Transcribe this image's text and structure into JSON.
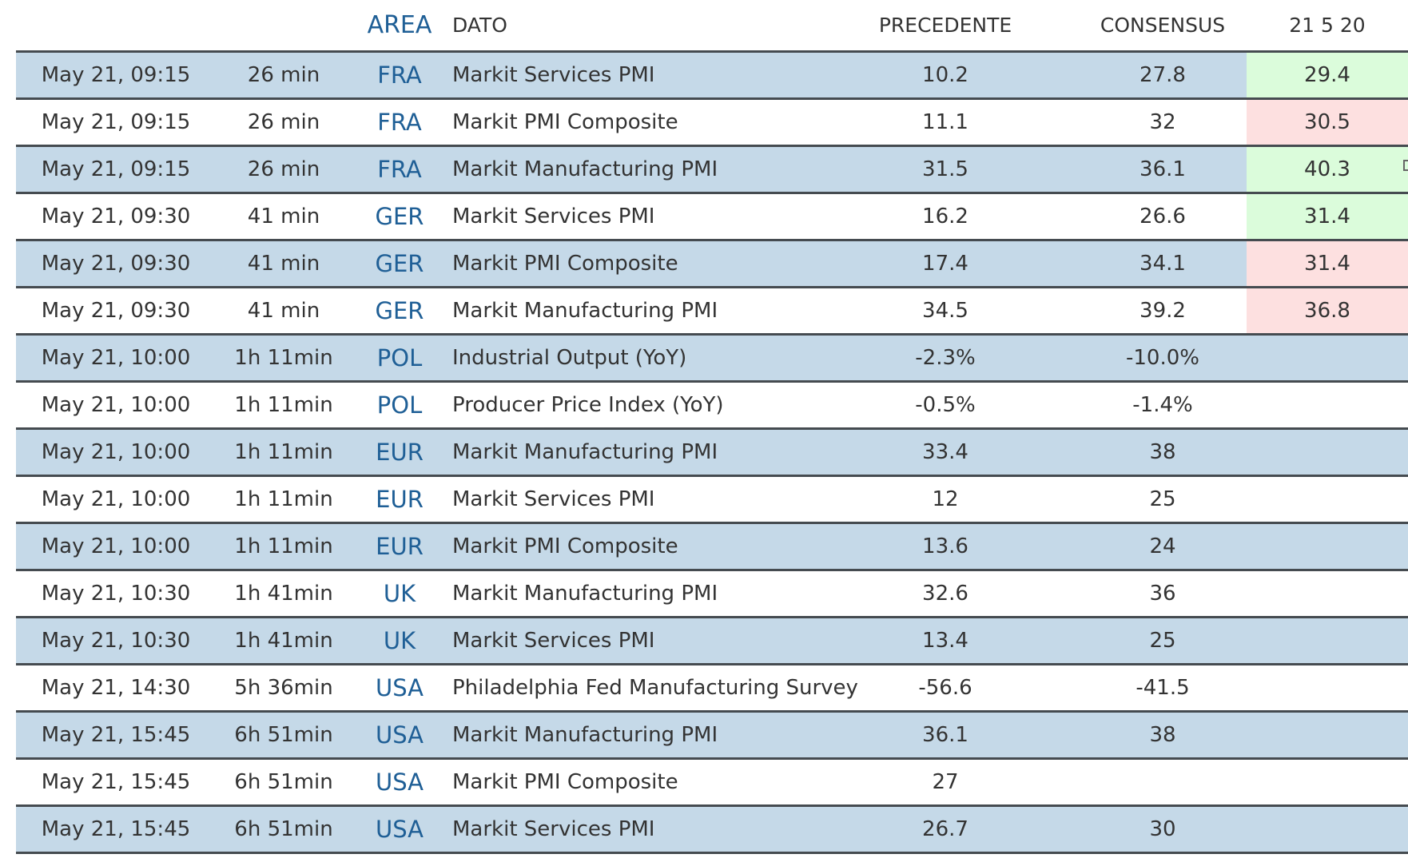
{
  "header": {
    "area": "AREA",
    "dato": "DATO",
    "precedente": "PRECEDENTE",
    "consensus": "CONSENSUS",
    "actual_date": "21 5 20"
  },
  "colors": {
    "row_alt": "#c5d9e8",
    "area_text": "#1f5f96",
    "actual_up": "#dbfcdb",
    "actual_down": "#fde0e0",
    "row_divider": "#454b50"
  },
  "rows": [
    {
      "time": "May 21, 09:15",
      "eta": "26 min",
      "area": "FRA",
      "dato": "Markit Services PMI",
      "precedente": "10.2",
      "consensus": "27.8",
      "actual": "29.4",
      "trend": "up"
    },
    {
      "time": "May 21, 09:15",
      "eta": "26 min",
      "area": "FRA",
      "dato": "Markit PMI Composite",
      "precedente": "11.1",
      "consensus": "32",
      "actual": "30.5",
      "trend": "down"
    },
    {
      "time": "May 21, 09:15",
      "eta": "26 min",
      "area": "FRA",
      "dato": "Markit Manufacturing PMI",
      "precedente": "31.5",
      "consensus": "36.1",
      "actual": "40.3",
      "trend": "up"
    },
    {
      "time": "May 21, 09:30",
      "eta": "41 min",
      "area": "GER",
      "dato": "Markit Services PMI",
      "precedente": "16.2",
      "consensus": "26.6",
      "actual": "31.4",
      "trend": "up"
    },
    {
      "time": "May 21, 09:30",
      "eta": "41 min",
      "area": "GER",
      "dato": "Markit PMI Composite",
      "precedente": "17.4",
      "consensus": "34.1",
      "actual": "31.4",
      "trend": "down"
    },
    {
      "time": "May 21, 09:30",
      "eta": "41 min",
      "area": "GER",
      "dato": "Markit Manufacturing PMI",
      "precedente": "34.5",
      "consensus": "39.2",
      "actual": "36.8",
      "trend": "down"
    },
    {
      "time": "May 21, 10:00",
      "eta": "1h 11min",
      "area": "POL",
      "dato": "Industrial Output (YoY)",
      "precedente": "-2.3%",
      "consensus": "-10.0%",
      "actual": "",
      "trend": ""
    },
    {
      "time": "May 21, 10:00",
      "eta": "1h 11min",
      "area": "POL",
      "dato": "Producer Price Index (YoY)",
      "precedente": "-0.5%",
      "consensus": "-1.4%",
      "actual": "",
      "trend": ""
    },
    {
      "time": "May 21, 10:00",
      "eta": "1h 11min",
      "area": "EUR",
      "dato": "Markit Manufacturing PMI",
      "precedente": "33.4",
      "consensus": "38",
      "actual": "",
      "trend": ""
    },
    {
      "time": "May 21, 10:00",
      "eta": "1h 11min",
      "area": "EUR",
      "dato": "Markit Services PMI",
      "precedente": "12",
      "consensus": "25",
      "actual": "",
      "trend": ""
    },
    {
      "time": "May 21, 10:00",
      "eta": "1h 11min",
      "area": "EUR",
      "dato": "Markit PMI Composite",
      "precedente": "13.6",
      "consensus": "24",
      "actual": "",
      "trend": ""
    },
    {
      "time": "May 21, 10:30",
      "eta": "1h 41min",
      "area": "UK",
      "dato": "Markit Manufacturing PMI",
      "precedente": "32.6",
      "consensus": "36",
      "actual": "",
      "trend": ""
    },
    {
      "time": "May 21, 10:30",
      "eta": "1h 41min",
      "area": "UK",
      "dato": "Markit Services PMI",
      "precedente": "13.4",
      "consensus": "25",
      "actual": "",
      "trend": ""
    },
    {
      "time": "May 21, 14:30",
      "eta": "5h 36min",
      "area": "USA",
      "dato": "Philadelphia Fed Manufacturing Survey",
      "precedente": "-56.6",
      "consensus": "-41.5",
      "actual": "",
      "trend": ""
    },
    {
      "time": "May 21, 15:45",
      "eta": "6h 51min",
      "area": "USA",
      "dato": "Markit Manufacturing PMI",
      "precedente": "36.1",
      "consensus": "38",
      "actual": "",
      "trend": ""
    },
    {
      "time": "May 21, 15:45",
      "eta": "6h 51min",
      "area": "USA",
      "dato": "Markit PMI Composite",
      "precedente": "27",
      "consensus": "",
      "actual": "",
      "trend": ""
    },
    {
      "time": "May 21, 15:45",
      "eta": "6h 51min",
      "area": "USA",
      "dato": "Markit Services PMI",
      "precedente": "26.7",
      "consensus": "30",
      "actual": "",
      "trend": ""
    }
  ]
}
